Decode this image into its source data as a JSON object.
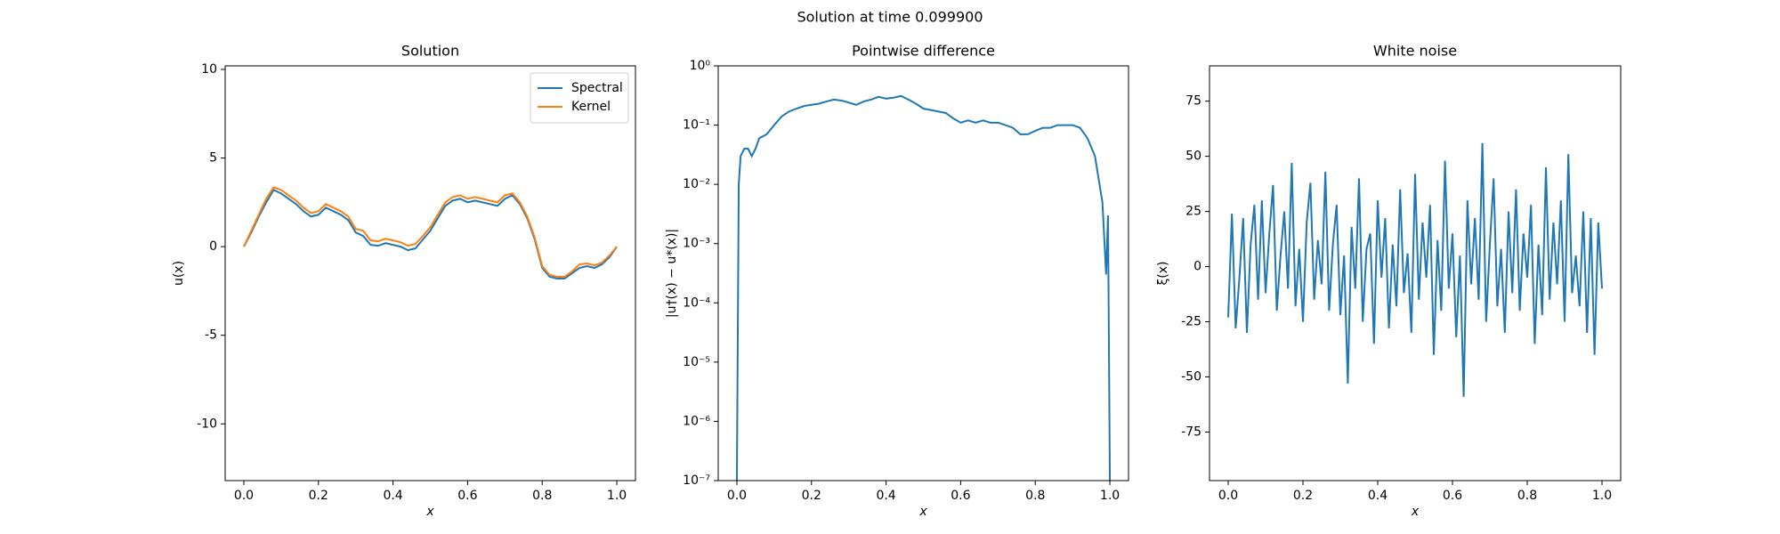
{
  "title": "Solution at time 0.099900",
  "chart_data": [
    {
      "type": "line",
      "title": "Solution",
      "xlabel": "x",
      "ylabel": "u(x)",
      "x": [
        0,
        0.02,
        0.04,
        0.06,
        0.08,
        0.1,
        0.12,
        0.14,
        0.16,
        0.18,
        0.2,
        0.22,
        0.24,
        0.26,
        0.28,
        0.3,
        0.32,
        0.34,
        0.36,
        0.38,
        0.4,
        0.42,
        0.44,
        0.46,
        0.48,
        0.5,
        0.52,
        0.54,
        0.56,
        0.58,
        0.6,
        0.62,
        0.64,
        0.66,
        0.68,
        0.7,
        0.72,
        0.74,
        0.76,
        0.78,
        0.8,
        0.82,
        0.84,
        0.86,
        0.88,
        0.9,
        0.92,
        0.94,
        0.96,
        0.98,
        1.0
      ],
      "series": [
        {
          "name": "Spectral",
          "color": "#1f77b4",
          "values": [
            0,
            0.8,
            1.7,
            2.5,
            3.2,
            3.0,
            2.7,
            2.4,
            2.0,
            1.7,
            1.8,
            2.2,
            2.0,
            1.8,
            1.5,
            0.8,
            0.6,
            0.1,
            0.05,
            0.2,
            0.1,
            0.0,
            -0.2,
            -0.1,
            0.4,
            0.9,
            1.6,
            2.3,
            2.6,
            2.7,
            2.5,
            2.6,
            2.5,
            2.4,
            2.3,
            2.7,
            2.9,
            2.4,
            1.6,
            0.4,
            -1.2,
            -1.7,
            -1.8,
            -1.8,
            -1.5,
            -1.2,
            -1.1,
            -1.2,
            -1.0,
            -0.6,
            0
          ]
        },
        {
          "name": "Kernel",
          "color": "#ff7f0e",
          "values": [
            0,
            0.9,
            1.8,
            2.7,
            3.35,
            3.2,
            2.9,
            2.6,
            2.2,
            1.9,
            2.0,
            2.4,
            2.2,
            2.0,
            1.7,
            1.0,
            0.9,
            0.35,
            0.3,
            0.45,
            0.35,
            0.25,
            0.05,
            0.15,
            0.6,
            1.1,
            1.8,
            2.5,
            2.8,
            2.9,
            2.7,
            2.8,
            2.7,
            2.6,
            2.5,
            2.9,
            3.0,
            2.5,
            1.7,
            0.5,
            -1.1,
            -1.6,
            -1.7,
            -1.7,
            -1.4,
            -1.0,
            -0.95,
            -1.05,
            -0.9,
            -0.5,
            0
          ]
        }
      ],
      "xlim": [
        -0.05,
        1.05
      ],
      "xticks": [
        {
          "value": 0,
          "label": "0.0"
        },
        {
          "value": 0.2,
          "label": "0.2"
        },
        {
          "value": 0.4,
          "label": "0.4"
        },
        {
          "value": 0.6,
          "label": "0.6"
        },
        {
          "value": 0.8,
          "label": "0.8"
        },
        {
          "value": 1,
          "label": "1.0"
        }
      ],
      "ylim": [
        -13.2,
        10.2
      ],
      "yticks": [
        -10,
        -5,
        0,
        5,
        10
      ],
      "legend": "upper right"
    },
    {
      "type": "line",
      "title": "Pointwise difference",
      "xlabel": "x",
      "ylabel": "|u†(x) − u*(x)|",
      "yscale": "log",
      "color": "#1f77b4",
      "x": [
        0,
        0.005,
        0.01,
        0.02,
        0.03,
        0.04,
        0.05,
        0.06,
        0.08,
        0.1,
        0.12,
        0.14,
        0.16,
        0.18,
        0.2,
        0.22,
        0.24,
        0.26,
        0.28,
        0.3,
        0.32,
        0.34,
        0.36,
        0.38,
        0.4,
        0.42,
        0.44,
        0.46,
        0.48,
        0.5,
        0.52,
        0.54,
        0.56,
        0.58,
        0.6,
        0.62,
        0.64,
        0.66,
        0.68,
        0.7,
        0.72,
        0.74,
        0.76,
        0.78,
        0.8,
        0.82,
        0.84,
        0.86,
        0.88,
        0.9,
        0.92,
        0.94,
        0.96,
        0.98,
        0.99,
        0.995,
        1.0
      ],
      "values": [
        1e-07,
        0.01,
        0.03,
        0.04,
        0.04,
        0.03,
        0.04,
        0.06,
        0.07,
        0.1,
        0.14,
        0.17,
        0.19,
        0.21,
        0.22,
        0.23,
        0.25,
        0.27,
        0.26,
        0.24,
        0.22,
        0.25,
        0.27,
        0.3,
        0.28,
        0.29,
        0.31,
        0.27,
        0.23,
        0.19,
        0.18,
        0.17,
        0.16,
        0.13,
        0.11,
        0.12,
        0.11,
        0.12,
        0.11,
        0.11,
        0.1,
        0.09,
        0.07,
        0.07,
        0.08,
        0.09,
        0.09,
        0.1,
        0.1,
        0.1,
        0.09,
        0.06,
        0.03,
        0.005,
        0.0003,
        0.003,
        1e-07
      ],
      "xlim": [
        -0.05,
        1.05
      ],
      "xticks": [
        {
          "value": 0,
          "label": "0.0"
        },
        {
          "value": 0.2,
          "label": "0.2"
        },
        {
          "value": 0.4,
          "label": "0.4"
        },
        {
          "value": 0.6,
          "label": "0.6"
        },
        {
          "value": 0.8,
          "label": "0.8"
        },
        {
          "value": 1,
          "label": "1.0"
        }
      ],
      "ylim": [
        1e-07,
        1
      ],
      "yticks": [
        {
          "value": 1e-07,
          "label": "10⁻⁷"
        },
        {
          "value": 1e-06,
          "label": "10⁻⁶"
        },
        {
          "value": 1e-05,
          "label": "10⁻⁵"
        },
        {
          "value": 0.0001,
          "label": "10⁻⁴"
        },
        {
          "value": 0.001,
          "label": "10⁻³"
        },
        {
          "value": 0.01,
          "label": "10⁻²"
        },
        {
          "value": 0.1,
          "label": "10⁻¹"
        },
        {
          "value": 1,
          "label": "10⁰"
        }
      ]
    },
    {
      "type": "line",
      "title": "White noise",
      "xlabel": "x",
      "ylabel": "ξ(x)",
      "color": "#1f77b4",
      "x": [
        0,
        0.01,
        0.02,
        0.03,
        0.04,
        0.05,
        0.06,
        0.07,
        0.08,
        0.09,
        0.1,
        0.11,
        0.12,
        0.13,
        0.14,
        0.15,
        0.16,
        0.17,
        0.18,
        0.19,
        0.2,
        0.21,
        0.22,
        0.23,
        0.24,
        0.25,
        0.26,
        0.27,
        0.28,
        0.29,
        0.3,
        0.31,
        0.32,
        0.33,
        0.34,
        0.35,
        0.36,
        0.37,
        0.38,
        0.39,
        0.4,
        0.41,
        0.42,
        0.43,
        0.44,
        0.45,
        0.46,
        0.47,
        0.48,
        0.49,
        0.5,
        0.51,
        0.52,
        0.53,
        0.54,
        0.55,
        0.56,
        0.57,
        0.58,
        0.59,
        0.6,
        0.61,
        0.62,
        0.63,
        0.64,
        0.65,
        0.66,
        0.67,
        0.68,
        0.69,
        0.7,
        0.71,
        0.72,
        0.73,
        0.74,
        0.75,
        0.76,
        0.77,
        0.78,
        0.79,
        0.8,
        0.81,
        0.82,
        0.83,
        0.84,
        0.85,
        0.86,
        0.87,
        0.88,
        0.89,
        0.9,
        0.91,
        0.92,
        0.93,
        0.94,
        0.95,
        0.96,
        0.97,
        0.98,
        0.99,
        1.0
      ],
      "values": [
        -23,
        24,
        -28,
        -5,
        22,
        -30,
        10,
        28,
        -15,
        30,
        -12,
        15,
        37,
        -20,
        5,
        25,
        -10,
        47,
        -18,
        8,
        -25,
        20,
        38,
        -15,
        12,
        -8,
        43,
        -20,
        10,
        28,
        -22,
        5,
        -53,
        18,
        -10,
        40,
        -25,
        8,
        15,
        -35,
        30,
        -5,
        22,
        -28,
        10,
        -18,
        35,
        -12,
        6,
        -30,
        42,
        -15,
        20,
        -5,
        28,
        -40,
        12,
        -20,
        48,
        -10,
        15,
        -32,
        5,
        -59,
        30,
        -8,
        22,
        -15,
        56,
        -25,
        10,
        40,
        -18,
        8,
        -30,
        25,
        -12,
        35,
        -20,
        15,
        -5,
        28,
        -35,
        10,
        -22,
        45,
        -15,
        20,
        -8,
        30,
        -25,
        51,
        -12,
        5,
        -18,
        25,
        -30,
        22,
        -40,
        20,
        -10
      ],
      "xlim": [
        -0.05,
        1.05
      ],
      "xticks": [
        {
          "value": 0,
          "label": "0.0"
        },
        {
          "value": 0.2,
          "label": "0.2"
        },
        {
          "value": 0.4,
          "label": "0.4"
        },
        {
          "value": 0.6,
          "label": "0.6"
        },
        {
          "value": 0.8,
          "label": "0.8"
        },
        {
          "value": 1,
          "label": "1.0"
        }
      ],
      "ylim": [
        -97,
        91
      ],
      "yticks": [
        -75,
        -50,
        -25,
        0,
        25,
        50,
        75
      ]
    }
  ]
}
